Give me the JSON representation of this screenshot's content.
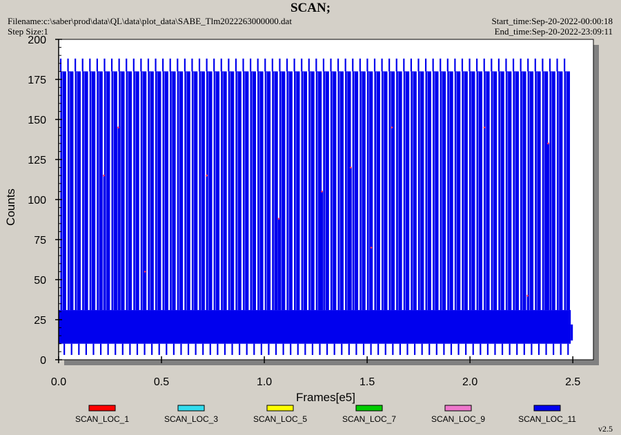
{
  "header": {
    "title": "SCAN;",
    "filename": "Filename:c:\\saber\\prod\\data\\QL\\data\\plot_data\\SABE_Tlm2022263000000.dat",
    "step_size": "Step Size:1",
    "start_time": "Start_time:Sep-20-2022-00:00:18",
    "end_time": "End_time:Sep-20-2022-23:09:11"
  },
  "version": "v2.5",
  "colors": {
    "background": "#d4d0c8",
    "plot_bg": "#ffffff",
    "shadow": "#808080",
    "series_main": "#0000ee"
  },
  "chart_data": {
    "type": "line",
    "title": "SCAN;",
    "xlabel": "Frames[e5]",
    "ylabel": "Counts",
    "xlim": [
      0,
      2.6
    ],
    "ylim": [
      0,
      200
    ],
    "xticks": [
      0.0,
      0.5,
      1.0,
      1.5,
      2.0,
      2.5
    ],
    "xtick_labels": [
      "0.0",
      "0.5",
      "1.0",
      "1.5",
      "2.0",
      "2.5"
    ],
    "yticks": [
      0,
      25,
      50,
      75,
      100,
      125,
      150,
      175,
      200
    ],
    "ytick_labels": [
      "0",
      "25",
      "50",
      "75",
      "100",
      "125",
      "150",
      "175",
      "200"
    ],
    "grid": false,
    "legend_position": "bottom",
    "data_end_x": 2.49,
    "scan_period": 0.0355,
    "scan_high": 180,
    "scan_peak": 188,
    "baseline_band": [
      10,
      31
    ],
    "baseline_min": 3,
    "series": [
      {
        "name": "SCAN_LOC_1",
        "color": "#ff0000"
      },
      {
        "name": "SCAN_LOC_3",
        "color": "#33ddee"
      },
      {
        "name": "SCAN_LOC_5",
        "color": "#ffff00"
      },
      {
        "name": "SCAN_LOC_7",
        "color": "#00cc00"
      },
      {
        "name": "SCAN_LOC_9",
        "color": "#ee77cc"
      },
      {
        "name": "SCAN_LOC_11",
        "color": "#0000ee"
      }
    ],
    "spikes": [
      {
        "x": 0.22,
        "y": 115
      },
      {
        "x": 0.29,
        "y": 145
      },
      {
        "x": 0.42,
        "y": 55
      },
      {
        "x": 0.72,
        "y": 115
      },
      {
        "x": 1.07,
        "y": 88
      },
      {
        "x": 1.28,
        "y": 105
      },
      {
        "x": 1.42,
        "y": 120
      },
      {
        "x": 1.52,
        "y": 70
      },
      {
        "x": 1.62,
        "y": 145
      },
      {
        "x": 2.07,
        "y": 145
      },
      {
        "x": 2.28,
        "y": 40
      },
      {
        "x": 2.38,
        "y": 135
      }
    ]
  }
}
